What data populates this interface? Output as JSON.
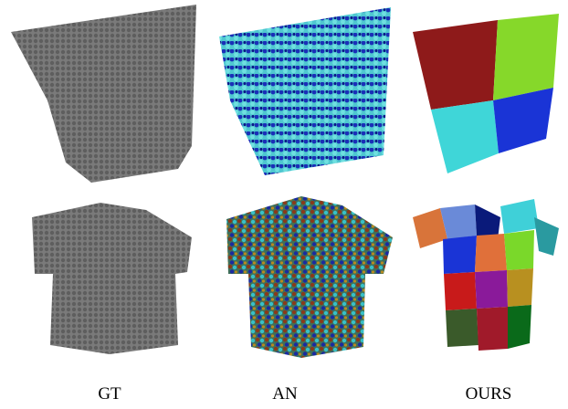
{
  "columns": [
    {
      "label": "GT"
    },
    {
      "label": "AN"
    },
    {
      "label": "OURS"
    }
  ]
}
